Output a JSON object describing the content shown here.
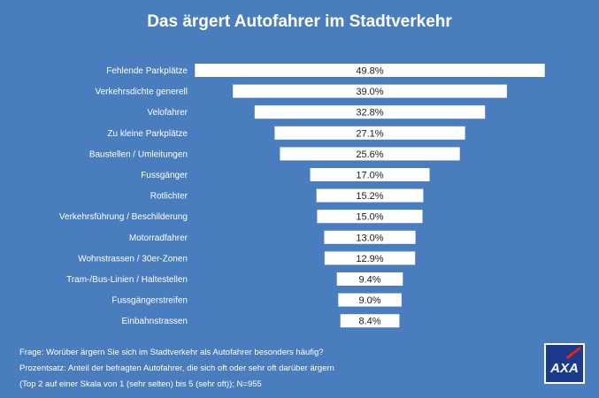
{
  "chart_data": {
    "type": "bar",
    "orientation": "horizontal-centered",
    "title": "Das ärgert Autofahrer im Stadtverkehr",
    "categories": [
      "Fehlende Parkplätze",
      "Verkehrsdichte generell",
      "Velofahrer",
      "Zu kleine Parkplätze",
      "Baustellen / Umleitungen",
      "Fussgänger",
      "Rotlichter",
      "Verkehrsführung / Beschilderung",
      "Motorradfahrer",
      "Wohnstrassen / 30er-Zonen",
      "Tram-/Bus-Linien / Haltestellen",
      "Fussgängerstreifen",
      "Einbahnstrassen"
    ],
    "values": [
      49.8,
      39.0,
      32.8,
      27.1,
      25.6,
      17.0,
      15.2,
      15.0,
      13.0,
      12.9,
      9.4,
      9.0,
      8.4
    ],
    "value_labels": [
      "49.8%",
      "39.0%",
      "32.8%",
      "27.1%",
      "25.6%",
      "17.0%",
      "15.2%",
      "15.0%",
      "13.0%",
      "12.9%",
      "9.4%",
      "9.0%",
      "8.4%"
    ],
    "unit": "%",
    "xlim": [
      0,
      50
    ],
    "grid": false,
    "legend": "none"
  },
  "footnote": {
    "line1": "Frage: Worüber ärgern Sie sich im Stadtverkehr als Autofahrer besonders häufig?",
    "line2": "Prozentsatz: Anteil der befragten Autofahrer, die sich oft oder sehr oft darüber ärgern",
    "line3": "(Top 2 auf einer Skala von 1 (sehr selten) bis 5 (sehr oft)); N=955"
  },
  "logo": {
    "text": "AXA"
  },
  "colors": {
    "background": "#4a7dbe",
    "bar": "#ffffff",
    "logo_red": "#e2231a"
  }
}
